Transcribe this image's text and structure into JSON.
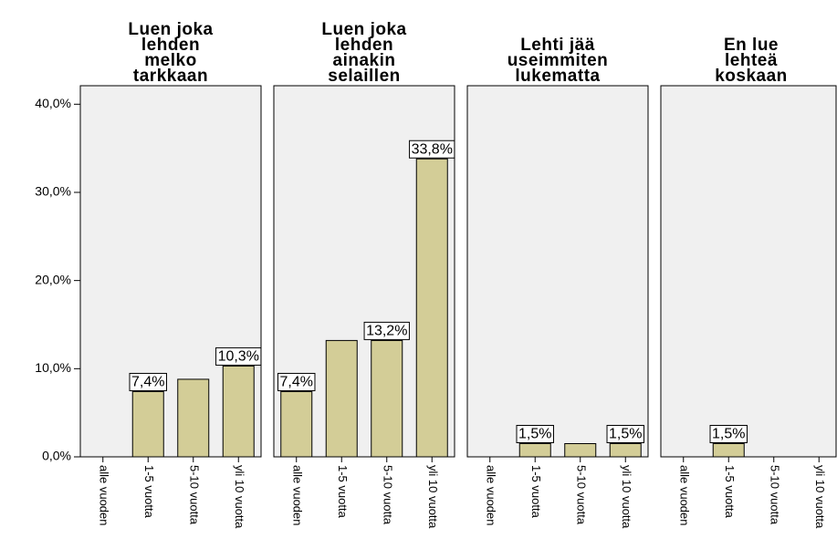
{
  "chart_data": {
    "type": "bar",
    "categories": [
      "alle vuoden",
      "1-5 vuotta",
      "5-10 vuotta",
      "yli 10 vuotta"
    ],
    "panels": [
      {
        "title": "Luen joka\nlehden\nmelko\ntarkkaan",
        "values": [
          0,
          7.4,
          8.8,
          10.3
        ],
        "value_labels": [
          null,
          "7,4%",
          null,
          "10,3%"
        ]
      },
      {
        "title": "Luen joka\nlehden\nainakin\nselaillen",
        "values": [
          7.4,
          13.2,
          13.2,
          33.8
        ],
        "value_labels": [
          "7,4%",
          null,
          "13,2%",
          "33,8%"
        ]
      },
      {
        "title": "Lehti jää\nuseimmiten\nlukematta",
        "values": [
          0,
          1.5,
          1.5,
          1.5
        ],
        "value_labels": [
          null,
          "1,5%",
          null,
          "1,5%"
        ]
      },
      {
        "title": "En lue\nlehteä\nkoskaan",
        "values": [
          0,
          1.5,
          0,
          0
        ],
        "value_labels": [
          null,
          "1,5%",
          null,
          null
        ]
      }
    ],
    "color": "#d3cd97",
    "panel_color": "#f0f0f0",
    "ylim": [
      0,
      42.1
    ],
    "yticks": [
      {
        "value": 0,
        "label": "0,0%"
      },
      {
        "value": 10,
        "label": "10,0%"
      },
      {
        "value": 20,
        "label": "20,0%"
      },
      {
        "value": 30,
        "label": "30,0%"
      },
      {
        "value": 40,
        "label": "40,0%"
      }
    ]
  }
}
